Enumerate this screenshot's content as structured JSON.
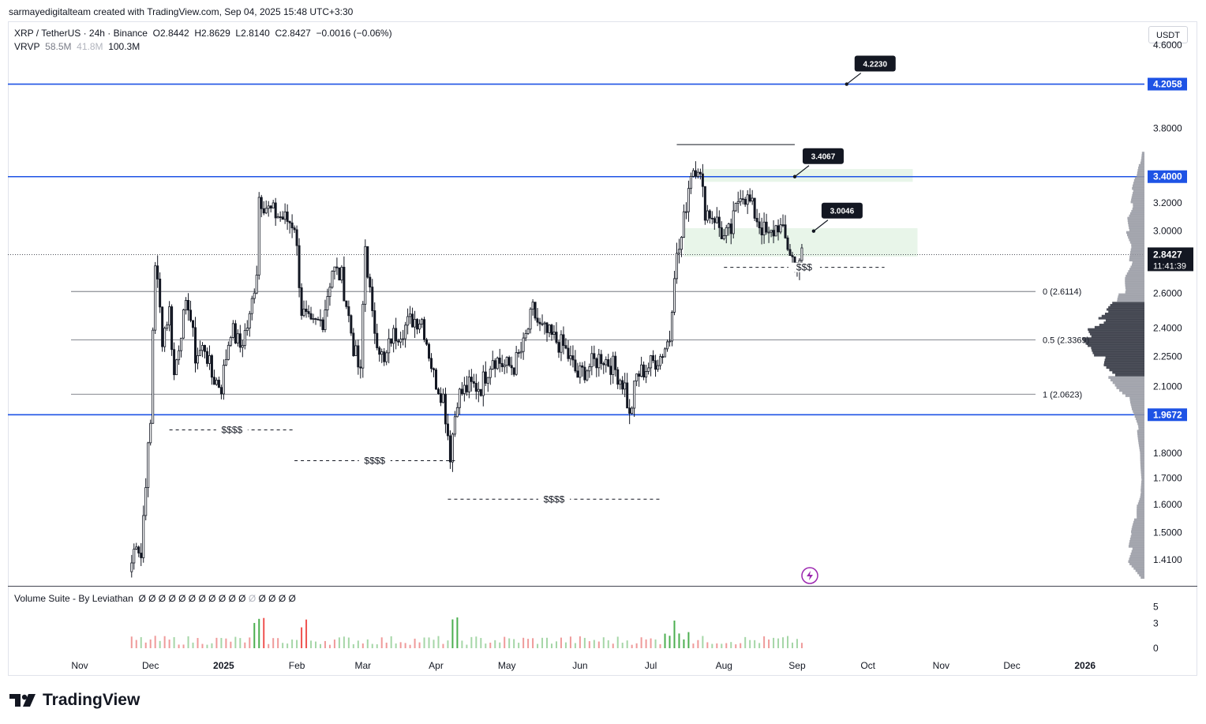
{
  "header": {
    "created_by": "sarmayedigitalteam created with TradingView.com, Sep 04, 2025 15:48 UTC+3:30"
  },
  "legend": {
    "symbol": "XRP / TetherUS · 24h · Binance",
    "open": "O2.8442",
    "high": "H2.8629",
    "low": "L2.8140",
    "close": "C2.8427",
    "change": "−0.0016 (−0.06%)",
    "vrvp_label": "VRVP",
    "vrvp_up": "58.5M",
    "vrvp_down": "41.8M",
    "vrvp_total": "100.3M"
  },
  "currency": "USDT",
  "volume_pane": {
    "title": "Volume Suite - By Leviathan",
    "placeholders": [
      "Ø",
      "Ø",
      "Ø",
      "Ø",
      "Ø",
      "Ø",
      "Ø",
      "Ø",
      "Ø",
      "Ø",
      "Ø",
      "Ø",
      "Ø",
      "Ø",
      "Ø",
      "Ø"
    ]
  },
  "brand": {
    "logo": "tradingview-logo-icon",
    "name": "TradingView"
  },
  "colors": {
    "up": "#26a69a",
    "down": "#131722",
    "level_line": "#1e53e5",
    "zone": "#e8f5e9",
    "vol_green": "#4caf50",
    "vol_red": "#ef5350",
    "vol_neutral": "#b2b5be"
  },
  "chart_data": {
    "type": "candlestick",
    "y_scale": "log",
    "ylim": [
      1.33,
      4.85
    ],
    "y_ticks": [
      {
        "value": 4.6,
        "label": "4.6000"
      },
      {
        "value": 3.8,
        "label": "3.8000"
      },
      {
        "value": 3.2,
        "label": "3.2000"
      },
      {
        "value": 3.0,
        "label": "3.0000"
      },
      {
        "value": 2.6,
        "label": "2.6000"
      },
      {
        "value": 2.4,
        "label": "2.4000"
      },
      {
        "value": 2.25,
        "label": "2.2500"
      },
      {
        "value": 2.1,
        "label": "2.1000"
      },
      {
        "value": 1.8,
        "label": "1.8000"
      },
      {
        "value": 1.7,
        "label": "1.7000"
      },
      {
        "value": 1.6,
        "label": "1.6000"
      },
      {
        "value": 1.5,
        "label": "1.5000"
      },
      {
        "value": 1.41,
        "label": "1.4100"
      }
    ],
    "x_ticks": [
      {
        "date": "2024-11-01",
        "label": "Nov",
        "bold": false
      },
      {
        "date": "2024-12-01",
        "label": "Dec",
        "bold": false
      },
      {
        "date": "2025-01-01",
        "label": "2025",
        "bold": true
      },
      {
        "date": "2025-02-01",
        "label": "Feb",
        "bold": false
      },
      {
        "date": "2025-03-01",
        "label": "Mar",
        "bold": false
      },
      {
        "date": "2025-04-01",
        "label": "Apr",
        "bold": false
      },
      {
        "date": "2025-05-01",
        "label": "May",
        "bold": false
      },
      {
        "date": "2025-06-01",
        "label": "Jun",
        "bold": false
      },
      {
        "date": "2025-07-01",
        "label": "Jul",
        "bold": false
      },
      {
        "date": "2025-08-01",
        "label": "Aug",
        "bold": false
      },
      {
        "date": "2025-09-01",
        "label": "Sep",
        "bold": false
      },
      {
        "date": "2025-10-01",
        "label": "Oct",
        "bold": false
      },
      {
        "date": "2025-11-01",
        "label": "Nov",
        "bold": false
      },
      {
        "date": "2025-12-01",
        "label": "Dec",
        "bold": false
      },
      {
        "date": "2026-01-01",
        "label": "2026",
        "bold": true
      }
    ],
    "price_path": [
      [
        "2024-11-23",
        1.4
      ],
      [
        "2024-11-25",
        1.48
      ],
      [
        "2024-11-27",
        1.42
      ],
      [
        "2024-11-29",
        1.7
      ],
      [
        "2024-12-01",
        1.92
      ],
      [
        "2024-12-02",
        2.4
      ],
      [
        "2024-12-03",
        2.8
      ],
      [
        "2024-12-06",
        2.35
      ],
      [
        "2024-12-09",
        2.5
      ],
      [
        "2024-12-11",
        2.15
      ],
      [
        "2024-12-14",
        2.4
      ],
      [
        "2024-12-17",
        2.55
      ],
      [
        "2024-12-20",
        2.25
      ],
      [
        "2024-12-24",
        2.3
      ],
      [
        "2024-12-27",
        2.15
      ],
      [
        "2024-12-31",
        2.1
      ],
      [
        "2025-01-04",
        2.4
      ],
      [
        "2025-01-08",
        2.3
      ],
      [
        "2025-01-12",
        2.45
      ],
      [
        "2025-01-15",
        2.75
      ],
      [
        "2025-01-16",
        3.25
      ],
      [
        "2025-01-20",
        3.15
      ],
      [
        "2025-01-25",
        3.1
      ],
      [
        "2025-01-31",
        3.05
      ],
      [
        "2025-02-03",
        2.5
      ],
      [
        "2025-02-07",
        2.4
      ],
      [
        "2025-02-12",
        2.45
      ],
      [
        "2025-02-16",
        2.75
      ],
      [
        "2025-02-20",
        2.7
      ],
      [
        "2025-02-25",
        2.3
      ],
      [
        "2025-02-28",
        2.15
      ],
      [
        "2025-03-02",
        2.9
      ],
      [
        "2025-03-05",
        2.45
      ],
      [
        "2025-03-10",
        2.2
      ],
      [
        "2025-03-13",
        2.35
      ],
      [
        "2025-03-18",
        2.4
      ],
      [
        "2025-03-22",
        2.45
      ],
      [
        "2025-03-26",
        2.45
      ],
      [
        "2025-03-31",
        2.15
      ],
      [
        "2025-04-04",
        2.05
      ],
      [
        "2025-04-07",
        1.8
      ],
      [
        "2025-04-10",
        2.05
      ],
      [
        "2025-04-15",
        2.1
      ],
      [
        "2025-04-20",
        2.1
      ],
      [
        "2025-04-25",
        2.25
      ],
      [
        "2025-04-30",
        2.2
      ],
      [
        "2025-05-04",
        2.2
      ],
      [
        "2025-05-08",
        2.3
      ],
      [
        "2025-05-12",
        2.5
      ],
      [
        "2025-05-15",
        2.4
      ],
      [
        "2025-05-20",
        2.35
      ],
      [
        "2025-05-25",
        2.3
      ],
      [
        "2025-05-31",
        2.15
      ],
      [
        "2025-06-05",
        2.2
      ],
      [
        "2025-06-10",
        2.25
      ],
      [
        "2025-06-15",
        2.2
      ],
      [
        "2025-06-20",
        2.1
      ],
      [
        "2025-06-22",
        1.95
      ],
      [
        "2025-06-25",
        2.15
      ],
      [
        "2025-06-30",
        2.2
      ],
      [
        "2025-07-05",
        2.25
      ],
      [
        "2025-07-09",
        2.35
      ],
      [
        "2025-07-11",
        2.75
      ],
      [
        "2025-07-14",
        2.95
      ],
      [
        "2025-07-18",
        3.45
      ],
      [
        "2025-07-21",
        3.5
      ],
      [
        "2025-07-24",
        3.15
      ],
      [
        "2025-07-28",
        3.1
      ],
      [
        "2025-08-01",
        2.95
      ],
      [
        "2025-08-04",
        3.0
      ],
      [
        "2025-08-08",
        3.3
      ],
      [
        "2025-08-12",
        3.2
      ],
      [
        "2025-08-16",
        3.05
      ],
      [
        "2025-08-20",
        2.95
      ],
      [
        "2025-08-24",
        3.05
      ],
      [
        "2025-08-28",
        2.9
      ],
      [
        "2025-08-31",
        2.78
      ],
      [
        "2025-09-03",
        2.84
      ]
    ],
    "last_price": {
      "value": 2.8427,
      "label": "2.8427",
      "countdown": "11:41:39"
    },
    "horizontal_levels": [
      {
        "value": 4.2058,
        "label": "4.2058"
      },
      {
        "value": 3.4,
        "label": "3.4000"
      },
      {
        "value": 1.9672,
        "label": "1.9672"
      }
    ],
    "fib_levels": [
      {
        "value": 2.6114,
        "label": "0 (2.6114)"
      },
      {
        "value": 2.3369,
        "label": "0.5 (2.3369)"
      },
      {
        "value": 2.0623,
        "label": "1 (2.0623)"
      }
    ],
    "callouts": [
      {
        "date": "2025-09-22",
        "value": 4.2058,
        "label": "4.2230"
      },
      {
        "date": "2025-08-31",
        "value": 3.4,
        "label": "3.4067"
      },
      {
        "date": "2025-09-08",
        "value": 3.0,
        "label": "3.0046"
      }
    ],
    "zones": [
      {
        "from": "2025-07-23",
        "to": "2025-10-20",
        "low": 3.36,
        "high": 3.46
      },
      {
        "from": "2025-07-15",
        "to": "2025-10-22",
        "low": 2.83,
        "high": 3.02
      }
    ],
    "high_marker": {
      "from": "2025-07-12",
      "to": "2025-08-31",
      "value": 3.66
    },
    "liquidity": [
      {
        "from": "2024-12-09",
        "to": "2025-01-31",
        "value": 1.9,
        "label": "$$$$"
      },
      {
        "from": "2025-01-31",
        "to": "2025-04-09",
        "value": 1.77,
        "label": "$$$$"
      },
      {
        "from": "2025-04-06",
        "to": "2025-07-05",
        "value": 1.62,
        "label": "$$$$"
      },
      {
        "from": "2025-08-01",
        "to": "2025-10-08",
        "value": 2.76,
        "label": "$$$"
      }
    ],
    "volume_axis": {
      "ticks": [
        5,
        3,
        0
      ],
      "max": 5.6
    },
    "volume_profile": [
      [
        1.35,
        0.08
      ],
      [
        1.4,
        0.28
      ],
      [
        1.45,
        0.25
      ],
      [
        1.5,
        0.22
      ],
      [
        1.55,
        0.15
      ],
      [
        1.6,
        0.12
      ],
      [
        1.65,
        0.06
      ],
      [
        1.7,
        0.05
      ],
      [
        1.8,
        0.08
      ],
      [
        1.9,
        0.12
      ],
      [
        2.0,
        0.22
      ],
      [
        2.05,
        0.3
      ],
      [
        2.1,
        0.5
      ],
      [
        2.15,
        0.6
      ],
      [
        2.2,
        0.72
      ],
      [
        2.25,
        0.8
      ],
      [
        2.3,
        0.92
      ],
      [
        2.35,
        1.0
      ],
      [
        2.4,
        0.95
      ],
      [
        2.45,
        0.75
      ],
      [
        2.5,
        0.6
      ],
      [
        2.55,
        0.48
      ],
      [
        2.6,
        0.4
      ],
      [
        2.7,
        0.32
      ],
      [
        2.8,
        0.24
      ],
      [
        2.9,
        0.22
      ],
      [
        3.0,
        0.3
      ],
      [
        3.1,
        0.28
      ],
      [
        3.2,
        0.22
      ],
      [
        3.3,
        0.2
      ],
      [
        3.4,
        0.14
      ],
      [
        3.5,
        0.08
      ],
      [
        3.6,
        0.04
      ]
    ]
  }
}
